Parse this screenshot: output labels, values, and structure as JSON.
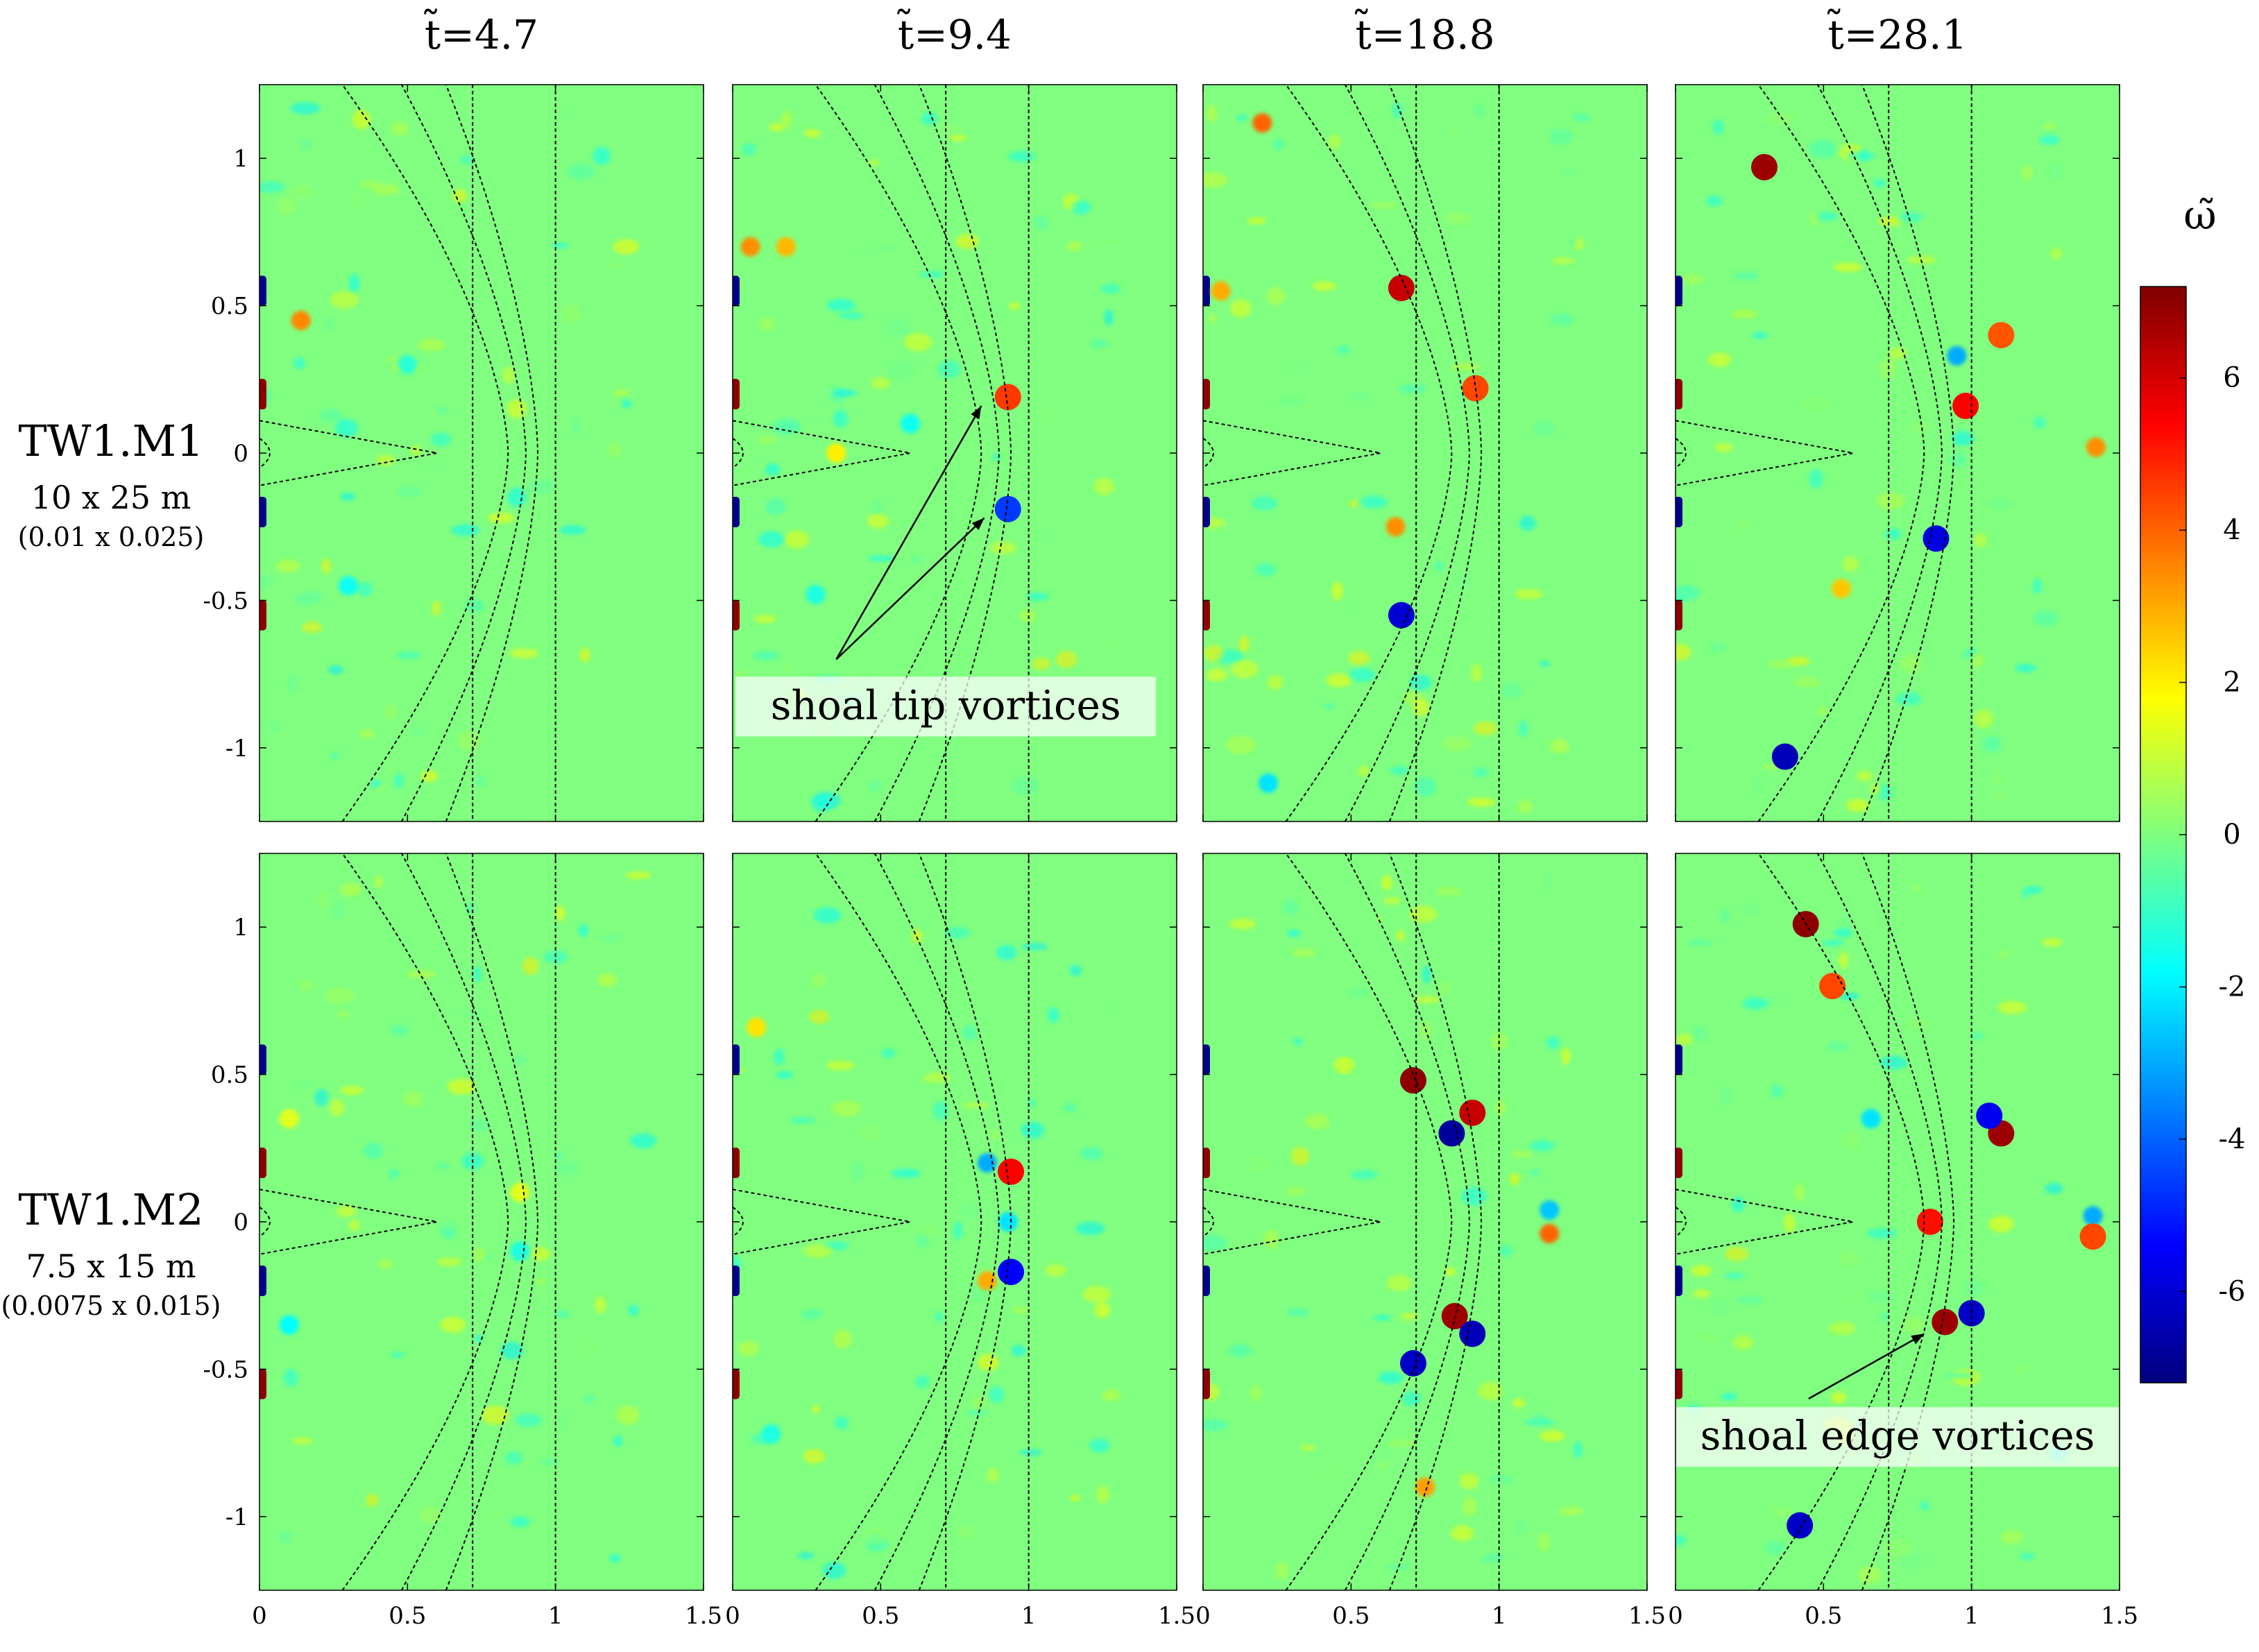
{
  "chart_data": {
    "type": "heatmap",
    "title": "",
    "colorbar": {
      "label": "ω̃",
      "range": [
        -7.2,
        7.2
      ],
      "ticks": [
        6,
        4,
        2,
        0,
        -2,
        -4,
        -6
      ],
      "tick_labels": [
        "6",
        "4",
        "2",
        "0",
        "-2",
        "-4",
        "-6"
      ],
      "colormap": "jet",
      "colors": [
        "#00007f",
        "#0000ff",
        "#0080ff",
        "#00ffff",
        "#7fff7f",
        "#ffff00",
        "#ff8000",
        "#ff0000",
        "#7f0000"
      ]
    },
    "axes": {
      "xlim": [
        0,
        1.5
      ],
      "ylim": [
        -1.25,
        1.25
      ],
      "xticks": [
        0,
        0.5,
        1,
        1.5
      ],
      "xtick_labels": [
        "0",
        "0.5",
        "1",
        "1.5"
      ],
      "yticks": [
        1,
        0.5,
        0,
        -0.5,
        -1
      ],
      "ytick_labels": [
        "1",
        "0.5",
        "0",
        "-0.5",
        "-1"
      ]
    },
    "columns": [
      {
        "label": "t̃=4.7",
        "time": 4.7
      },
      {
        "label": "t̃=9.4",
        "time": 9.4
      },
      {
        "label": "t̃=18.8",
        "time": 18.8
      },
      {
        "label": "t̃=28.1",
        "time": 28.1
      }
    ],
    "rows": [
      {
        "label": "TW1.M1",
        "size": "10 x 25 m",
        "nondim": "(0.01 x 0.025)"
      },
      {
        "label": "TW1.M2",
        "size": "7.5 x 15 m",
        "nondim": "(0.0075 x 0.015)"
      }
    ],
    "depth_contours": {
      "vertical_lines_x": [
        0.72,
        1.0
      ],
      "arc_apex_x": [
        0.84,
        0.9,
        0.94
      ],
      "arc_base_x": [
        0.28,
        0.48,
        0.63
      ],
      "half_height": 1.25
    },
    "shoal_outline": {
      "tip_x": 0.6,
      "base_half_width": 0.11,
      "inner_loop_x": 0.07
    },
    "annotations": [
      {
        "panel": [
          0,
          1
        ],
        "text": "shoal tip vortices",
        "box_center": [
          0.72,
          -0.86
        ],
        "targets": [
          [
            0.84,
            0.16
          ],
          [
            0.85,
            -0.22
          ]
        ],
        "from": [
          0.35,
          -0.7
        ]
      },
      {
        "panel": [
          1,
          3
        ],
        "text": "shoal edge vortices",
        "box_center": [
          0.75,
          -0.73
        ],
        "targets": [
          [
            0.84,
            -0.38
          ]
        ],
        "from": [
          0.45,
          -0.6
        ]
      }
    ],
    "panels": [
      {
        "row": 0,
        "col": 0,
        "vortices": [
          {
            "x": 0.87,
            "y": 0.15,
            "w": 0.9
          },
          {
            "x": 0.87,
            "y": -0.15,
            "w": -1
          },
          {
            "x": 0.14,
            "y": 0.45,
            "w": 3.5
          },
          {
            "x": 0.3,
            "y": -0.45,
            "w": -1.6
          },
          {
            "x": 0.5,
            "y": 0.3,
            "w": -1.2
          }
        ]
      },
      {
        "row": 0,
        "col": 1,
        "vortices": [
          {
            "x": 0.93,
            "y": 0.19,
            "w": 4.6
          },
          {
            "x": 0.93,
            "y": -0.19,
            "w": -4.6
          },
          {
            "x": 0.06,
            "y": 0.7,
            "w": 3.4
          },
          {
            "x": 0.18,
            "y": 0.7,
            "w": 2.8
          },
          {
            "x": 0.35,
            "y": 0.0,
            "w": 2.0
          },
          {
            "x": 0.6,
            "y": 0.1,
            "w": -1.6
          },
          {
            "x": 0.28,
            "y": -0.48,
            "w": -1.4
          }
        ]
      },
      {
        "row": 0,
        "col": 2,
        "vortices": [
          {
            "x": 0.2,
            "y": 1.12,
            "w": 4.0
          },
          {
            "x": 0.67,
            "y": 0.56,
            "w": 6.2
          },
          {
            "x": 0.92,
            "y": 0.22,
            "w": 4.4
          },
          {
            "x": 0.67,
            "y": -0.55,
            "w": -6.0
          },
          {
            "x": 0.22,
            "y": -1.12,
            "w": -2.2
          },
          {
            "x": 0.65,
            "y": -0.25,
            "w": 3.4
          },
          {
            "x": 0.06,
            "y": 0.55,
            "w": 3.0
          }
        ]
      },
      {
        "row": 0,
        "col": 3,
        "vortices": [
          {
            "x": 0.3,
            "y": 0.97,
            "w": 6.8
          },
          {
            "x": 1.1,
            "y": 0.4,
            "w": 4.2
          },
          {
            "x": 0.98,
            "y": 0.16,
            "w": 5.4
          },
          {
            "x": 0.88,
            "y": -0.29,
            "w": -5.8
          },
          {
            "x": 0.37,
            "y": -1.03,
            "w": -6.4
          },
          {
            "x": 0.56,
            "y": -0.46,
            "w": 2.6
          },
          {
            "x": 1.42,
            "y": 0.02,
            "w": 3.4
          },
          {
            "x": 0.95,
            "y": 0.33,
            "w": -3.0
          }
        ]
      },
      {
        "row": 1,
        "col": 0,
        "vortices": [
          {
            "x": 0.88,
            "y": 0.1,
            "w": 1.4
          },
          {
            "x": 0.88,
            "y": -0.1,
            "w": -1.4
          },
          {
            "x": 0.1,
            "y": -0.35,
            "w": -1.8
          },
          {
            "x": 0.1,
            "y": 0.35,
            "w": 1.4
          }
        ]
      },
      {
        "row": 1,
        "col": 1,
        "vortices": [
          {
            "x": 0.94,
            "y": 0.17,
            "w": 5.4
          },
          {
            "x": 0.94,
            "y": -0.17,
            "w": -5.4
          },
          {
            "x": 0.86,
            "y": 0.2,
            "w": -3.0
          },
          {
            "x": 0.86,
            "y": -0.2,
            "w": 3.0
          },
          {
            "x": 0.93,
            "y": 0.0,
            "w": -2.2
          },
          {
            "x": 0.08,
            "y": 0.66,
            "w": 2.2
          },
          {
            "x": 0.13,
            "y": -0.72,
            "w": -1.4
          }
        ]
      },
      {
        "row": 1,
        "col": 2,
        "vortices": [
          {
            "x": 0.71,
            "y": 0.48,
            "w": 7.0
          },
          {
            "x": 0.91,
            "y": 0.37,
            "w": 6.2
          },
          {
            "x": 0.84,
            "y": 0.3,
            "w": -6.8
          },
          {
            "x": 0.85,
            "y": -0.32,
            "w": 6.8
          },
          {
            "x": 0.91,
            "y": -0.38,
            "w": -6.4
          },
          {
            "x": 0.71,
            "y": -0.48,
            "w": -6.2
          },
          {
            "x": 1.17,
            "y": 0.04,
            "w": -2.6
          },
          {
            "x": 1.17,
            "y": -0.04,
            "w": 4.0
          },
          {
            "x": 0.75,
            "y": -0.9,
            "w": 3.2
          }
        ]
      },
      {
        "row": 1,
        "col": 3,
        "vortices": [
          {
            "x": 0.44,
            "y": 1.01,
            "w": 7.0
          },
          {
            "x": 0.53,
            "y": 0.8,
            "w": 4.4
          },
          {
            "x": 1.1,
            "y": 0.3,
            "w": 6.8
          },
          {
            "x": 1.06,
            "y": 0.36,
            "w": -5.6
          },
          {
            "x": 0.66,
            "y": 0.35,
            "w": -2.2
          },
          {
            "x": 0.91,
            "y": -0.34,
            "w": 6.8
          },
          {
            "x": 1.0,
            "y": -0.31,
            "w": -6.2
          },
          {
            "x": 0.42,
            "y": -1.03,
            "w": -6.2
          },
          {
            "x": 1.41,
            "y": 0.02,
            "w": -3.0
          },
          {
            "x": 1.41,
            "y": -0.05,
            "w": 4.4
          },
          {
            "x": 0.86,
            "y": 0.0,
            "w": 5.2
          }
        ]
      }
    ]
  }
}
